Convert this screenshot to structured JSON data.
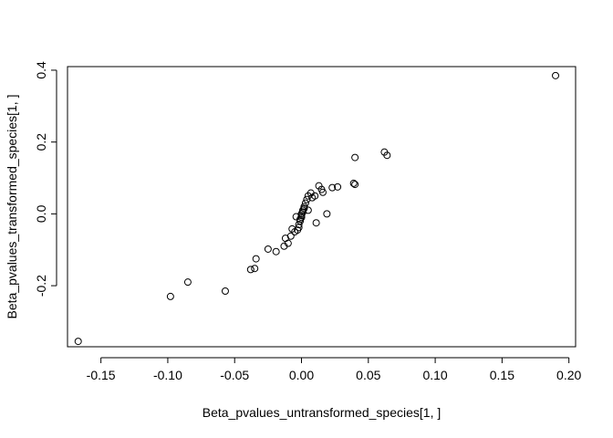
{
  "chart_data": {
    "type": "scatter",
    "title": "",
    "xlabel": "Beta_pvalues_untransformed_species[1, ]",
    "ylabel": "Beta_pvalues_transformed_species[1, ]",
    "xlim": [
      -0.175,
      0.205
    ],
    "ylim": [
      -0.37,
      0.41
    ],
    "xticks": [
      -0.15,
      -0.1,
      -0.05,
      0.0,
      0.05,
      0.1,
      0.15,
      0.2
    ],
    "xtick_labels": [
      "-0.15",
      "-0.10",
      "-0.05",
      "0.00",
      "0.05",
      "0.10",
      "0.15",
      "0.20"
    ],
    "yticks": [
      -0.2,
      0.0,
      0.2,
      0.4
    ],
    "ytick_labels": [
      "-0.2",
      "0.0",
      "0.2",
      "0.4"
    ],
    "grid": false,
    "marker": "open-circle",
    "point_color": "#000000",
    "points": [
      {
        "x": -0.167,
        "y": -0.355
      },
      {
        "x": -0.098,
        "y": -0.23
      },
      {
        "x": -0.085,
        "y": -0.19
      },
      {
        "x": -0.057,
        "y": -0.215
      },
      {
        "x": -0.038,
        "y": -0.155
      },
      {
        "x": -0.035,
        "y": -0.152
      },
      {
        "x": -0.034,
        "y": -0.125
      },
      {
        "x": -0.025,
        "y": -0.098
      },
      {
        "x": -0.019,
        "y": -0.105
      },
      {
        "x": -0.013,
        "y": -0.09
      },
      {
        "x": -0.012,
        "y": -0.068
      },
      {
        "x": -0.01,
        "y": -0.082
      },
      {
        "x": -0.008,
        "y": -0.062
      },
      {
        "x": -0.007,
        "y": -0.042
      },
      {
        "x": -0.005,
        "y": -0.05
      },
      {
        "x": -0.004,
        "y": -0.008
      },
      {
        "x": -0.003,
        "y": -0.045
      },
      {
        "x": -0.002,
        "y": -0.038
      },
      {
        "x": -0.002,
        "y": -0.03
      },
      {
        "x": -0.001,
        "y": -0.02
      },
      {
        "x": -0.001,
        "y": -0.015
      },
      {
        "x": 0.0,
        "y": -0.01
      },
      {
        "x": 0.0,
        "y": -0.005
      },
      {
        "x": 0.0,
        "y": 0.0
      },
      {
        "x": 0.001,
        "y": 0.005
      },
      {
        "x": 0.001,
        "y": 0.01
      },
      {
        "x": 0.002,
        "y": 0.015
      },
      {
        "x": 0.002,
        "y": 0.02
      },
      {
        "x": 0.003,
        "y": 0.03
      },
      {
        "x": 0.004,
        "y": 0.04
      },
      {
        "x": 0.005,
        "y": 0.05
      },
      {
        "x": 0.005,
        "y": 0.01
      },
      {
        "x": 0.007,
        "y": 0.058
      },
      {
        "x": 0.008,
        "y": 0.045
      },
      {
        "x": 0.01,
        "y": 0.05
      },
      {
        "x": 0.011,
        "y": -0.025
      },
      {
        "x": 0.013,
        "y": 0.078
      },
      {
        "x": 0.015,
        "y": 0.068
      },
      {
        "x": 0.016,
        "y": 0.06
      },
      {
        "x": 0.019,
        "y": 0.0
      },
      {
        "x": 0.023,
        "y": 0.073
      },
      {
        "x": 0.027,
        "y": 0.075
      },
      {
        "x": 0.039,
        "y": 0.085
      },
      {
        "x": 0.04,
        "y": 0.082
      },
      {
        "x": 0.04,
        "y": 0.157
      },
      {
        "x": 0.062,
        "y": 0.172
      },
      {
        "x": 0.064,
        "y": 0.163
      },
      {
        "x": 0.19,
        "y": 0.385
      }
    ]
  }
}
